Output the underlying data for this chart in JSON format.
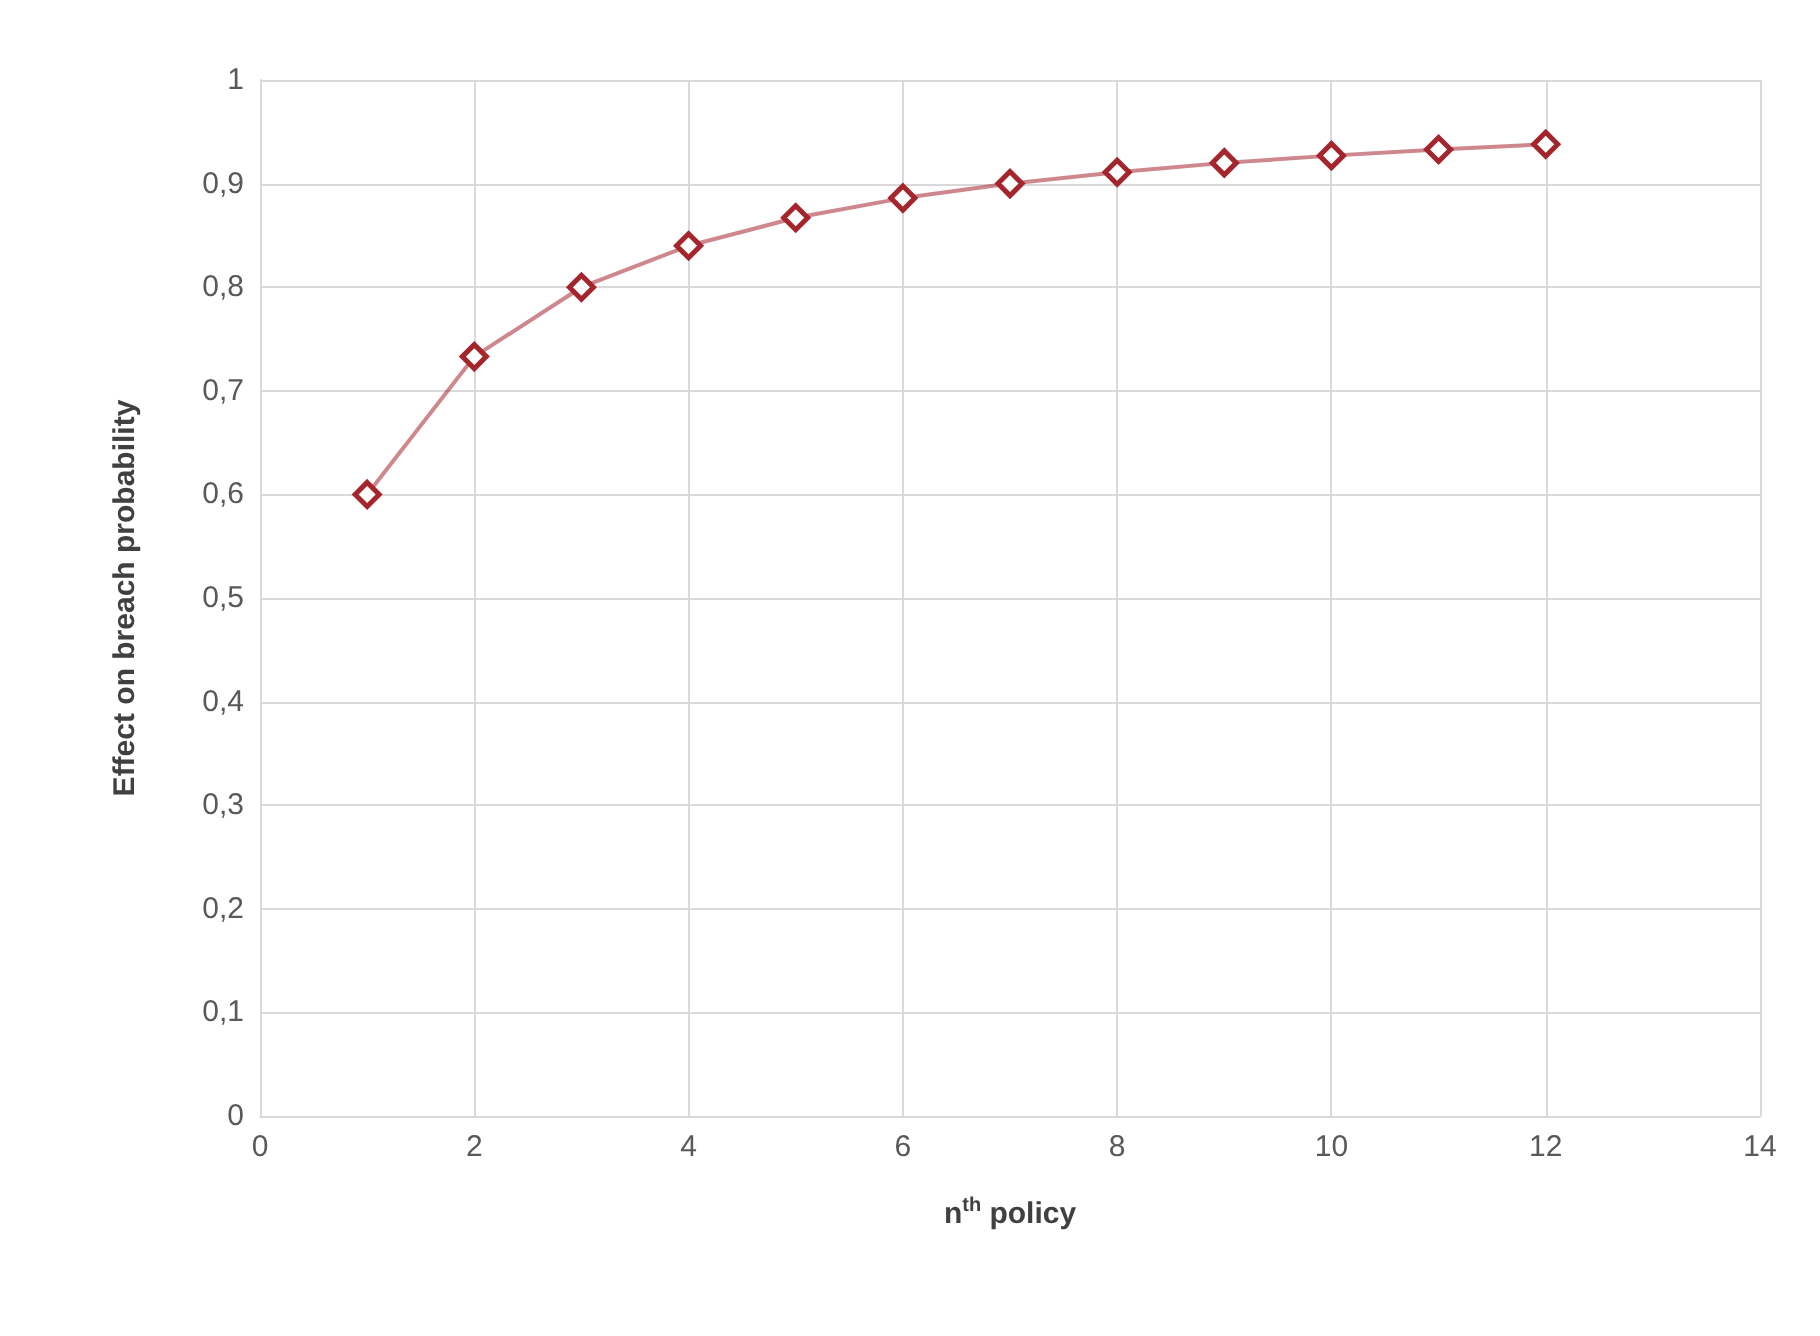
{
  "chart_data": {
    "type": "line",
    "xlabel": "n$^{th}$ policy",
    "ylabel": "Effect on breach probability",
    "x": [
      1,
      2,
      3,
      4,
      5,
      6,
      7,
      8,
      9,
      10,
      11,
      12
    ],
    "series": [
      {
        "color": "#a5252d",
        "values": [
          0.6,
          0.733,
          0.8,
          0.84,
          0.867,
          0.886,
          0.9,
          0.911,
          0.92,
          0.927,
          0.933,
          0.938
        ]
      }
    ],
    "xlim": [
      0,
      14
    ],
    "xticks": [
      0,
      2,
      4,
      6,
      8,
      10,
      12,
      14
    ],
    "ylim": [
      0,
      1
    ],
    "yticks": [
      0,
      {
        "value": 0.1,
        "label": "0,1"
      },
      {
        "value": 0.2,
        "label": "0,2"
      },
      {
        "value": 0.3,
        "label": "0,3"
      },
      {
        "value": 0.4,
        "label": "0,4"
      },
      {
        "value": 0.5,
        "label": "0,5"
      },
      {
        "value": 0.6,
        "label": "0,6"
      },
      {
        "value": 0.7,
        "label": "0,7"
      },
      {
        "value": 0.8,
        "label": "0,8"
      },
      {
        "value": 0.9,
        "label": "0,9"
      },
      1
    ],
    "grid": true,
    "marker": "diamond",
    "line_style": "solid"
  }
}
